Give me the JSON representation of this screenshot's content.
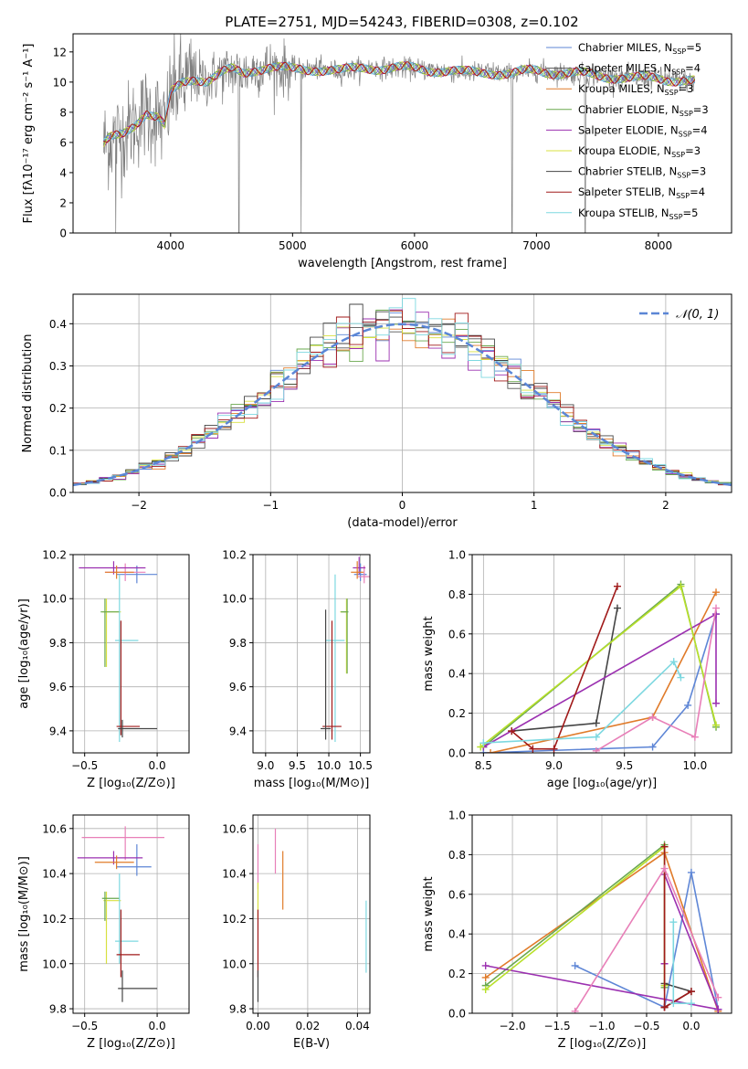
{
  "figure_title": "PLATE=2751, MJD=54243, FIBERID=0308, z=0.102",
  "colors": {
    "chabrier_miles": "#5e86d6",
    "salpeter_miles": "#555555",
    "kroupa_miles": "#e07b2a",
    "chabrier_elodie": "#6aa84f",
    "salpeter_elodie": "#9b30b0",
    "kroupa_elodie": "#d8e040",
    "chabrier_stelib": "#444444",
    "salpeter_stelib": "#a01a1a",
    "kroupa_stelib": "#7dd8e0",
    "data_spectrum": "#808080",
    "pink": "#e87fb8",
    "lime": "#b8e02a",
    "normal_curve": "#5b86d6"
  },
  "chart_data": [
    {
      "id": "spectrum",
      "type": "line",
      "title": "PLATE=2751, MJD=54243, FIBERID=0308, z=0.102",
      "xlabel": "wavelength [Angstrom, rest frame]",
      "ylabel": "Flux [fλ10⁻¹⁷ erg cm⁻² s⁻¹ A⁻¹]",
      "xlim": [
        3200,
        8600
      ],
      "ylim": [
        0,
        13.2
      ],
      "xticks": [
        4000,
        5000,
        6000,
        7000,
        8000
      ],
      "yticks": [
        0,
        2,
        4,
        6,
        8,
        10,
        12
      ],
      "grid": false,
      "legend_position": "top-right",
      "legend": [
        {
          "label": "Chabrier MILES, N",
          "sub": "SSP",
          "tail": "=5",
          "color": "#5e86d6"
        },
        {
          "label": "Salpeter MILES, N",
          "sub": "SSP",
          "tail": "=4",
          "color": "#555555"
        },
        {
          "label": "Kroupa MILES, N",
          "sub": "SSP",
          "tail": "=3",
          "color": "#e07b2a"
        },
        {
          "label": "Chabrier ELODIE, N",
          "sub": "SSP",
          "tail": "=3",
          "color": "#6aa84f"
        },
        {
          "label": "Salpeter ELODIE, N",
          "sub": "SSP",
          "tail": "=4",
          "color": "#9b30b0"
        },
        {
          "label": "Kroupa ELODIE, N",
          "sub": "SSP",
          "tail": "=3",
          "color": "#d8e040"
        },
        {
          "label": "Chabrier STELIB, N",
          "sub": "SSP",
          "tail": "=3",
          "color": "#444444"
        },
        {
          "label": "Salpeter STELIB, N",
          "sub": "SSP",
          "tail": "=4",
          "color": "#a01a1a"
        },
        {
          "label": "Kroupa STELIB, N",
          "sub": "SSP",
          "tail": "=5",
          "color": "#7dd8e0"
        }
      ],
      "continuum_x": [
        3450,
        3500,
        3600,
        3700,
        3800,
        3900,
        3950,
        4000,
        4100,
        4200,
        4300,
        4400,
        4500,
        4600,
        4700,
        4800,
        5000,
        5200,
        5400,
        5600,
        5800,
        6000,
        6200,
        6400,
        6600,
        6800,
        7000,
        7200,
        7400,
        7600,
        7800,
        8000,
        8200,
        8300
      ],
      "continuum_y": [
        5.8,
        6.2,
        6.5,
        7.2,
        8.0,
        7.6,
        7.0,
        9.2,
        10.0,
        10.3,
        10.1,
        10.5,
        10.8,
        10.6,
        10.9,
        11.0,
        10.8,
        10.9,
        10.7,
        11.0,
        10.9,
        10.9,
        10.8,
        10.6,
        10.7,
        10.5,
        10.8,
        10.6,
        10.5,
        10.4,
        10.2,
        10.3,
        10.1,
        10.0
      ],
      "absorption_dips": [
        [
          3550,
          0.0
        ],
        [
          4560,
          0.0
        ],
        [
          5070,
          0.0
        ],
        [
          6800,
          0.0
        ],
        [
          7400,
          0.0
        ]
      ]
    },
    {
      "id": "residuals",
      "type": "histogram",
      "xlabel": "(data-model)/error",
      "ylabel": "Normed distribution",
      "xlim": [
        -2.5,
        2.5
      ],
      "ylim": [
        0,
        0.47
      ],
      "xticks": [
        -2,
        -1,
        0,
        1,
        2
      ],
      "yticks": [
        0.0,
        0.1,
        0.2,
        0.3,
        0.4
      ],
      "grid": true,
      "legend_position": "top-right",
      "legend_label": "𝒩(0, 1)",
      "bin_width": 0.1
    },
    {
      "id": "age_vs_Z",
      "type": "errorbar",
      "xlabel": "Z [log₁₀(Z/Z⊙)]",
      "ylabel": "age  [log₁₀(age/yr)]",
      "xlim": [
        -0.58,
        0.22
      ],
      "ylim": [
        9.3,
        10.2
      ],
      "xticks": [
        -0.5,
        0.0
      ],
      "yticks": [
        9.4,
        9.6,
        9.8,
        10.0,
        10.2
      ],
      "grid": true,
      "points": [
        {
          "x": -0.14,
          "y": 10.11,
          "x_err": [
            0.14,
            0.14
          ],
          "y_err": [
            0.04,
            0.04
          ],
          "color": "#5e86d6"
        },
        {
          "x": -0.22,
          "y": 10.12,
          "x_err": [
            0.14,
            0.14
          ],
          "y_err": [
            0.04,
            0.04
          ],
          "color": "#e87fb8"
        },
        {
          "x": -0.3,
          "y": 10.14,
          "x_err": [
            0.24,
            0.22
          ],
          "y_err": [
            0.03,
            0.03
          ],
          "color": "#9b30b0"
        },
        {
          "x": -0.28,
          "y": 10.12,
          "x_err": [
            0.08,
            0.12
          ],
          "y_err": [
            0.03,
            0.03
          ],
          "color": "#e07b2a"
        },
        {
          "x": -0.35,
          "y": 9.94,
          "x_err": [
            0.03,
            0.1
          ],
          "y_err": [
            0.25,
            0.06
          ],
          "color": "#d8e040"
        },
        {
          "x": -0.36,
          "y": 9.94,
          "x_err": [
            0.03,
            0.1
          ],
          "y_err": [
            0.25,
            0.06
          ],
          "color": "#6aa84f"
        },
        {
          "x": -0.26,
          "y": 9.81,
          "x_err": [
            0.03,
            0.13
          ],
          "y_err": [
            0.46,
            0.3
          ],
          "color": "#7dd8e0"
        },
        {
          "x": -0.25,
          "y": 9.42,
          "x_err": [
            0.03,
            0.13
          ],
          "y_err": [
            0.04,
            0.48
          ],
          "color": "#a01a1a"
        },
        {
          "x": -0.24,
          "y": 9.41,
          "x_err": [
            0.03,
            0.24
          ],
          "y_err": [
            0.04,
            0.04
          ],
          "color": "#444444"
        }
      ]
    },
    {
      "id": "age_vs_mass",
      "type": "errorbar",
      "xlabel": "mass [log₁₀(M/M⊙)]",
      "ylabel": "",
      "xlim": [
        8.8,
        10.65
      ],
      "ylim": [
        9.3,
        10.2
      ],
      "xticks": [
        9.0,
        9.5,
        10.0,
        10.5
      ],
      "yticks": [
        9.4,
        9.6,
        9.8,
        10.0,
        10.2
      ],
      "grid": true,
      "points": [
        {
          "x": 10.5,
          "y": 10.11,
          "x_err": [
            0.1,
            0.1
          ],
          "y_err": [
            0.03,
            0.05
          ],
          "color": "#5e86d6"
        },
        {
          "x": 10.56,
          "y": 10.1,
          "x_err": [
            0.1,
            0.1
          ],
          "y_err": [
            0.03,
            0.05
          ],
          "color": "#e87fb8"
        },
        {
          "x": 10.48,
          "y": 10.14,
          "x_err": [
            0.1,
            0.1
          ],
          "y_err": [
            0.03,
            0.05
          ],
          "color": "#9b30b0"
        },
        {
          "x": 10.45,
          "y": 10.12,
          "x_err": [
            0.1,
            0.1
          ],
          "y_err": [
            0.03,
            0.05
          ],
          "color": "#e07b2a"
        },
        {
          "x": 10.28,
          "y": 9.94,
          "x_err": [
            0.1,
            0.02
          ],
          "y_err": [
            0.28,
            0.06
          ],
          "color": "#d8e040"
        },
        {
          "x": 10.29,
          "y": 9.94,
          "x_err": [
            0.1,
            0.02
          ],
          "y_err": [
            0.28,
            0.06
          ],
          "color": "#6aa84f"
        },
        {
          "x": 10.1,
          "y": 9.81,
          "x_err": [
            0.15,
            0.15
          ],
          "y_err": [
            0.46,
            0.3
          ],
          "color": "#7dd8e0"
        },
        {
          "x": 10.05,
          "y": 9.42,
          "x_err": [
            0.15,
            0.15
          ],
          "y_err": [
            0.06,
            0.48
          ],
          "color": "#a01a1a"
        },
        {
          "x": 9.95,
          "y": 9.41,
          "x_err": [
            0.08,
            0.08
          ],
          "y_err": [
            0.05,
            0.54
          ],
          "color": "#444444"
        }
      ]
    },
    {
      "id": "weight_vs_age",
      "type": "line",
      "xlabel": "age  [log₁₀(age/yr)]",
      "ylabel": "mass weight",
      "xlim": [
        8.42,
        10.26
      ],
      "ylim": [
        0,
        1.0
      ],
      "xticks": [
        8.5,
        9.0,
        9.5,
        10.0
      ],
      "yticks": [
        0.0,
        0.2,
        0.4,
        0.6,
        0.8,
        1.0
      ],
      "grid": true,
      "series": [
        {
          "x": [
            8.5,
            9.7,
            9.95,
            10.15
          ],
          "y": [
            0.0,
            0.03,
            0.24,
            0.7
          ],
          "color": "#5e86d6"
        },
        {
          "x": [
            9.45,
            9.3,
            8.7
          ],
          "y": [
            0.73,
            0.15,
            0.11
          ],
          "color": "#444444"
        },
        {
          "x": [
            8.55,
            9.7,
            10.15
          ],
          "y": [
            0.0,
            0.18,
            0.81
          ],
          "color": "#e07b2a"
        },
        {
          "x": [
            8.5,
            9.9,
            10.15
          ],
          "y": [
            0.03,
            0.85,
            0.13
          ],
          "color": "#6aa84f"
        },
        {
          "x": [
            8.5,
            10.15,
            10.15
          ],
          "y": [
            0.03,
            0.7,
            0.25
          ],
          "color": "#9b30b0"
        },
        {
          "x": [
            8.48,
            9.9,
            10.15
          ],
          "y": [
            0.03,
            0.84,
            0.14
          ],
          "color": "#b8e02a"
        },
        {
          "x": [
            9.45,
            9.0,
            8.85,
            8.7
          ],
          "y": [
            0.84,
            0.02,
            0.02,
            0.11
          ],
          "color": "#a01a1a"
        },
        {
          "x": [
            8.5,
            9.3,
            9.85,
            9.9
          ],
          "y": [
            0.05,
            0.08,
            0.46,
            0.38
          ],
          "color": "#7dd8e0"
        },
        {
          "x": [
            9.3,
            9.7,
            10.0,
            10.15
          ],
          "y": [
            0.01,
            0.18,
            0.08,
            0.73
          ],
          "color": "#e87fb8"
        }
      ]
    },
    {
      "id": "mass_vs_Z",
      "type": "errorbar",
      "xlabel": "Z [log₁₀(Z/Z⊙)]",
      "ylabel": "mass [log₁₀(M/M⊙)]",
      "xlim": [
        -0.58,
        0.22
      ],
      "ylim": [
        9.78,
        10.66
      ],
      "xticks": [
        -0.5,
        0.0
      ],
      "yticks": [
        9.8,
        10.0,
        10.2,
        10.4,
        10.6
      ],
      "grid": true,
      "points": [
        {
          "x": -0.14,
          "y": 10.43,
          "x_err": [
            0.14,
            0.1
          ],
          "y_err": [
            0.04,
            0.1
          ],
          "color": "#5e86d6"
        },
        {
          "x": -0.22,
          "y": 10.56,
          "x_err": [
            0.3,
            0.27
          ],
          "y_err": [
            0.1,
            0.05
          ],
          "color": "#e87fb8"
        },
        {
          "x": -0.3,
          "y": 10.47,
          "x_err": [
            0.25,
            0.2
          ],
          "y_err": [
            0.03,
            0.03
          ],
          "color": "#9b30b0"
        },
        {
          "x": -0.28,
          "y": 10.45,
          "x_err": [
            0.15,
            0.12
          ],
          "y_err": [
            0.03,
            0.03
          ],
          "color": "#e07b2a"
        },
        {
          "x": -0.35,
          "y": 10.28,
          "x_err": [
            0.02,
            0.1
          ],
          "y_err": [
            0.28,
            0.04
          ],
          "color": "#d8e040"
        },
        {
          "x": -0.36,
          "y": 10.29,
          "x_err": [
            0.02,
            0.1
          ],
          "y_err": [
            0.1,
            0.03
          ],
          "color": "#6aa84f"
        },
        {
          "x": -0.26,
          "y": 10.1,
          "x_err": [
            0.03,
            0.13
          ],
          "y_err": [
            0.1,
            0.3
          ],
          "color": "#7dd8e0"
        },
        {
          "x": -0.25,
          "y": 10.04,
          "x_err": [
            0.03,
            0.13
          ],
          "y_err": [
            0.1,
            0.2
          ],
          "color": "#a01a1a"
        },
        {
          "x": -0.24,
          "y": 9.89,
          "x_err": [
            0.03,
            0.24
          ],
          "y_err": [
            0.06,
            0.08
          ],
          "color": "#444444"
        }
      ]
    },
    {
      "id": "mass_vs_ebv",
      "type": "errorbar",
      "xlabel": "E(B-V)",
      "ylabel": "",
      "xlim": [
        -0.002,
        0.045
      ],
      "ylim": [
        9.78,
        10.66
      ],
      "xticks": [
        0.0,
        0.02,
        0.04
      ],
      "yticks": [
        9.8,
        10.0,
        10.2,
        10.4,
        10.6
      ],
      "grid": true,
      "points": [
        {
          "x": 0.0,
          "y": 10.43,
          "x_err": [
            0.0,
            0.0
          ],
          "y_err": [
            0.1,
            0.1
          ],
          "color": "#e87fb8"
        },
        {
          "x": 0.0,
          "y": 10.28,
          "x_err": [
            0.0,
            0.0
          ],
          "y_err": [
            0.08,
            0.08
          ],
          "color": "#d8e040"
        },
        {
          "x": 0.0,
          "y": 10.04,
          "x_err": [
            0.0,
            0.0
          ],
          "y_err": [
            0.1,
            0.2
          ],
          "color": "#a01a1a"
        },
        {
          "x": 0.0,
          "y": 9.89,
          "x_err": [
            0.0,
            0.0
          ],
          "y_err": [
            0.06,
            0.08
          ],
          "color": "#444444"
        },
        {
          "x": 0.007,
          "y": 10.5,
          "x_err": [
            0.0,
            0.0
          ],
          "y_err": [
            0.1,
            0.1
          ],
          "color": "#e87fb8"
        },
        {
          "x": 0.01,
          "y": 10.38,
          "x_err": [
            0.0,
            0.0
          ],
          "y_err": [
            0.14,
            0.12
          ],
          "color": "#e07b2a"
        },
        {
          "x": 0.0435,
          "y": 10.12,
          "x_err": [
            0.0,
            0.0
          ],
          "y_err": [
            0.16,
            0.16
          ],
          "color": "#7dd8e0"
        }
      ]
    },
    {
      "id": "weight_vs_Z",
      "type": "line",
      "xlabel": "Z [log₁₀(Z/Z⊙)]",
      "ylabel": "mass weight",
      "xlim": [
        -2.45,
        0.45
      ],
      "ylim": [
        0,
        1.0
      ],
      "xticks": [
        -2.0,
        -1.5,
        -1.0,
        -0.5,
        0.0
      ],
      "yticks": [
        0.0,
        0.2,
        0.4,
        0.6,
        0.8,
        1.0
      ],
      "grid": true,
      "series": [
        {
          "x": [
            -1.3,
            -0.3,
            0.0,
            0.3
          ],
          "y": [
            0.24,
            0.03,
            0.71,
            0.02
          ],
          "color": "#5e86d6"
        },
        {
          "x": [
            -0.3,
            0.0,
            -0.3
          ],
          "y": [
            0.15,
            0.11,
            0.03
          ],
          "color": "#444444"
        },
        {
          "x": [
            -2.3,
            -0.3,
            0.3
          ],
          "y": [
            0.18,
            0.81,
            0.01
          ],
          "color": "#e07b2a"
        },
        {
          "x": [
            -2.3,
            -0.3,
            -0.3
          ],
          "y": [
            0.14,
            0.85,
            0.13
          ],
          "color": "#6aa84f"
        },
        {
          "x": [
            -2.3,
            0.3,
            0.3,
            -0.3,
            -0.3
          ],
          "y": [
            0.24,
            0.02,
            0.02,
            0.7,
            0.25
          ],
          "color": "#9b30b0"
        },
        {
          "x": [
            -2.3,
            -0.3,
            -0.3
          ],
          "y": [
            0.12,
            0.84,
            0.14
          ],
          "color": "#b8e02a"
        },
        {
          "x": [
            -0.3,
            -0.3,
            0.0,
            -0.3
          ],
          "y": [
            0.84,
            0.03,
            0.11,
            0.03
          ],
          "color": "#a01a1a"
        },
        {
          "x": [
            -0.2,
            -0.2,
            0.0
          ],
          "y": [
            0.46,
            0.05,
            0.05
          ],
          "color": "#7dd8e0"
        },
        {
          "x": [
            -1.3,
            -0.3,
            0.3
          ],
          "y": [
            0.01,
            0.73,
            0.08
          ],
          "color": "#e87fb8"
        }
      ]
    }
  ]
}
